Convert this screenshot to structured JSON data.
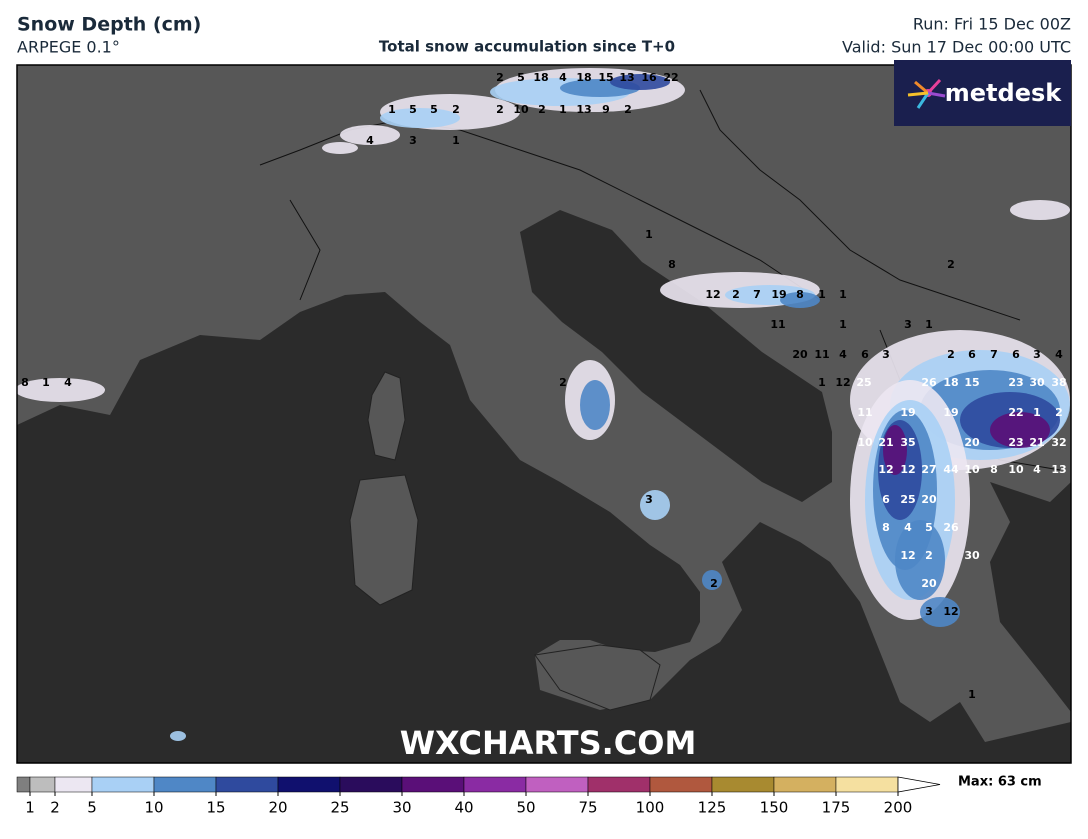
{
  "header": {
    "title": "Snow Depth (cm)",
    "model": "ARPEGE 0.1°",
    "subtitle": "Total snow accumulation since T+0",
    "run": "Run: Fri 15 Dec 00Z",
    "valid": "Valid: Sun 17 Dec 00:00 UTC"
  },
  "logo": "metdesk",
  "watermark": "WXCHARTS.COM",
  "map_labels": [
    "2",
    "5",
    "18",
    "4",
    "18",
    "15",
    "13",
    "16",
    "22",
    "1",
    "5",
    "5",
    "2",
    "2",
    "10",
    "2",
    "1",
    "13",
    "9",
    "2",
    "4",
    "3",
    "1",
    "1",
    "8",
    "12",
    "2",
    "7",
    "19",
    "8",
    "1",
    "1",
    "11",
    "1",
    "3",
    "1",
    "2",
    "20",
    "11",
    "4",
    "6",
    "3",
    "2",
    "6",
    "7",
    "6",
    "3",
    "4",
    "1",
    "12",
    "25",
    "26",
    "18",
    "15",
    "23",
    "30",
    "38",
    "11",
    "19",
    "19",
    "22",
    "1",
    "2",
    "10",
    "21",
    "35",
    "20",
    "23",
    "21",
    "32",
    "12",
    "12",
    "27",
    "44",
    "10",
    "8",
    "10",
    "4",
    "13",
    "6",
    "25",
    "20",
    "8",
    "4",
    "5",
    "26",
    "12",
    "2",
    "30",
    "20",
    "3",
    "12",
    "1",
    "2",
    "3",
    "2",
    "8",
    "1",
    "4"
  ],
  "legend": {
    "ticks": [
      1,
      2,
      5,
      10,
      15,
      20,
      25,
      30,
      40,
      50,
      75,
      100,
      125,
      150,
      175,
      200
    ],
    "colors": [
      "#7f7f7f",
      "#bdbdbd",
      "#ece7f2",
      "#a9d0f5",
      "#4f87c6",
      "#2f4a9e",
      "#10106e",
      "#2a0c5c",
      "#5a0f78",
      "#8a2ba3",
      "#c060c0",
      "#a0306a",
      "#b0583e",
      "#a88a30",
      "#d4b060",
      "#f5e0a0",
      "#ffffff"
    ],
    "max_label": "Max: 63 cm"
  }
}
